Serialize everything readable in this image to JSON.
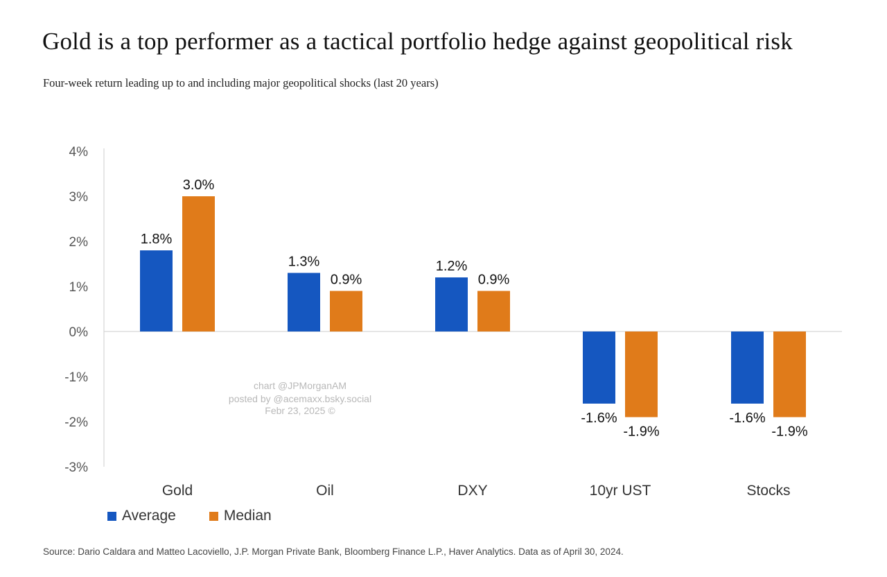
{
  "title": "Gold is a top performer as a tactical portfolio hedge against geopolitical risk",
  "subtitle": "Four-week return leading up to and including major geopolitical shocks (last 20 years)",
  "source": "Source: Dario Caldara and Matteo Lacoviello, J.P. Morgan Private Bank, Bloomberg Finance L.P., Haver Analytics. Data as of April 30, 2024.",
  "watermark": {
    "line1": "chart @JPMorganAM",
    "line2": "posted by @acemaxx.bsky.social",
    "line3": "Febr 23, 2025 ©"
  },
  "colors": {
    "average": "#1557c0",
    "median": "#e07b1a"
  },
  "chart_data": {
    "type": "bar",
    "categories": [
      "Gold",
      "Oil",
      "DXY",
      "10yr UST",
      "Stocks"
    ],
    "series": [
      {
        "name": "Average",
        "values": [
          1.8,
          1.3,
          1.2,
          -1.6,
          -1.6
        ],
        "labels": [
          "1.8%",
          "1.3%",
          "1.2%",
          "-1.6%",
          "-1.6%"
        ]
      },
      {
        "name": "Median",
        "values": [
          3.0,
          0.9,
          0.9,
          -1.9,
          -1.9
        ],
        "labels": [
          "3.0%",
          "0.9%",
          "0.9%",
          "-1.9%",
          "-1.9%"
        ]
      }
    ],
    "yticks": [
      4,
      3,
      2,
      1,
      0,
      -1,
      -2,
      -3
    ],
    "ytick_labels": [
      "4%",
      "3%",
      "2%",
      "1%",
      "0%",
      "-1%",
      "-2%",
      "-3%"
    ],
    "ylim": [
      -3,
      4
    ],
    "legend_position": "bottom-left",
    "grid": false
  }
}
